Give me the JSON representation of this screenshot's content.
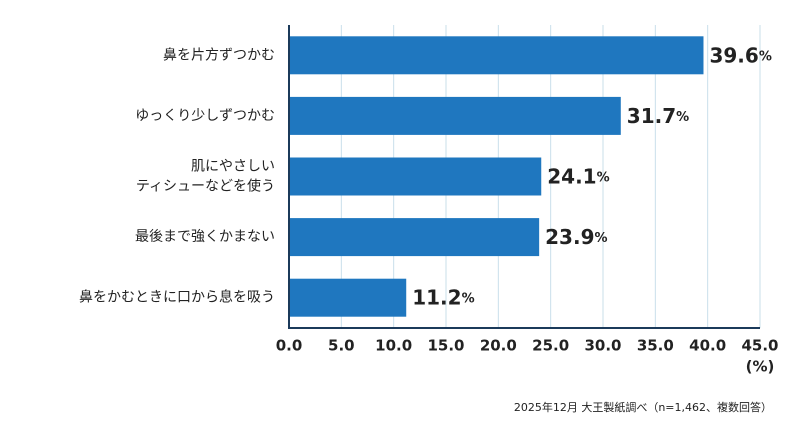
{
  "chart_data": {
    "type": "bar",
    "orientation": "horizontal",
    "color": "#1f77bf",
    "label_color": "#1f77bf",
    "grid": true,
    "grid_color": "#c9dfea",
    "categories": [
      "鼻を片方ずつかむ",
      "ゆっくり少しずつかむ",
      "肌にやさしい\nティシューなどを使う",
      "最後まで強くかまない",
      "鼻をかむときに口から息を吸う"
    ],
    "values": [
      39.6,
      31.7,
      24.1,
      23.9,
      11.2
    ],
    "value_labels": [
      "39.6%",
      "31.7%",
      "24.1%",
      "23.9%",
      "11.2%"
    ],
    "xlim": [
      0,
      45
    ],
    "xticks": [
      {
        "value": 0,
        "label": "0.0"
      },
      {
        "value": 5,
        "label": "5.0"
      },
      {
        "value": 10,
        "label": "10.0"
      },
      {
        "value": 15,
        "label": "15.0"
      },
      {
        "value": 20,
        "label": "20.0"
      },
      {
        "value": 25,
        "label": "25.0"
      },
      {
        "value": 30,
        "label": "30.0"
      },
      {
        "value": 35,
        "label": "35.0"
      },
      {
        "value": 40,
        "label": "40.0"
      },
      {
        "value": 45,
        "label": "45.0"
      }
    ],
    "xlabel": "(%)",
    "note": "2025年12月 大王製紙調べ（n=1,462、複数回答）"
  }
}
